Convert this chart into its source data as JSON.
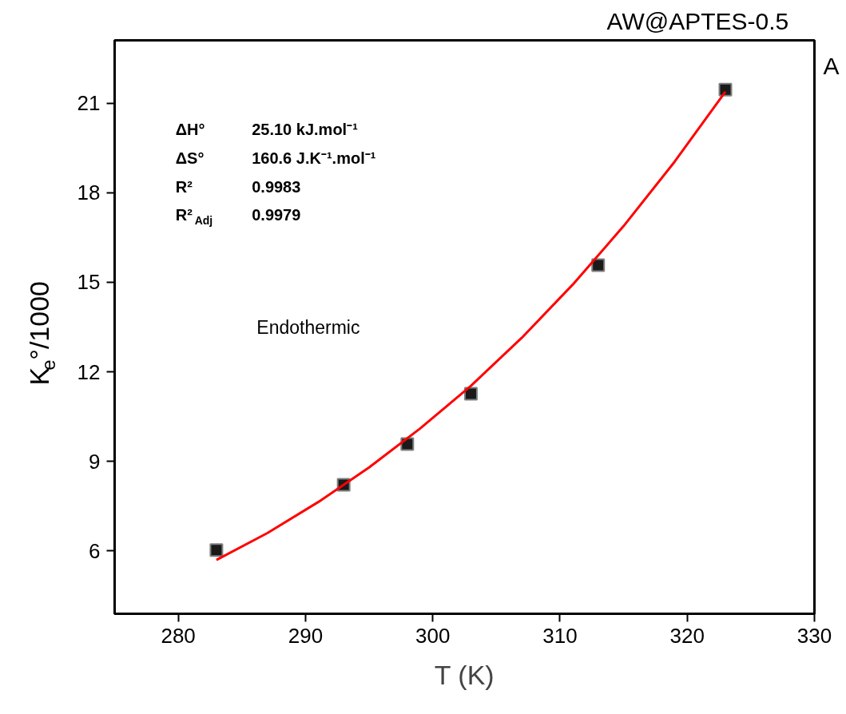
{
  "chart_data": {
    "type": "scatter",
    "title": "AW@APTES-0.5",
    "subtitle": "A",
    "xlabel": "T (K)",
    "ylabel": "K$_{e}$°/1000",
    "annotations": [
      "ΔH°",
      "25.10 kJ.mol⁻¹",
      "ΔS°",
      "160.6 J.K⁻¹.mol⁻¹",
      "R²",
      "0.9983",
      "R²$_{Adj}$",
      "0.9979",
      "Endothermic"
    ],
    "xlim": [
      275,
      330
    ],
    "xticks": [
      280,
      290,
      300,
      310,
      320,
      330
    ],
    "ylim": [
      3.9,
      23.1
    ],
    "yticks": [
      6,
      9,
      12,
      15,
      18,
      21
    ],
    "series": [
      {
        "type": "scatter",
        "marker": "square",
        "color": "#1a1a1a",
        "x": [
          283,
          293,
          298,
          303,
          313,
          323
        ],
        "values": [
          6.03,
          8.22,
          9.58,
          11.27,
          15.57,
          21.45
        ]
      },
      {
        "type": "line",
        "color": "#ff0000",
        "x": [
          283,
          287,
          291,
          295,
          299,
          303,
          307,
          311,
          315,
          319,
          323
        ],
        "values": [
          5.7,
          6.6,
          7.64,
          8.8,
          10.1,
          11.53,
          13.14,
          14.92,
          16.88,
          19.03,
          21.38
        ]
      }
    ]
  }
}
